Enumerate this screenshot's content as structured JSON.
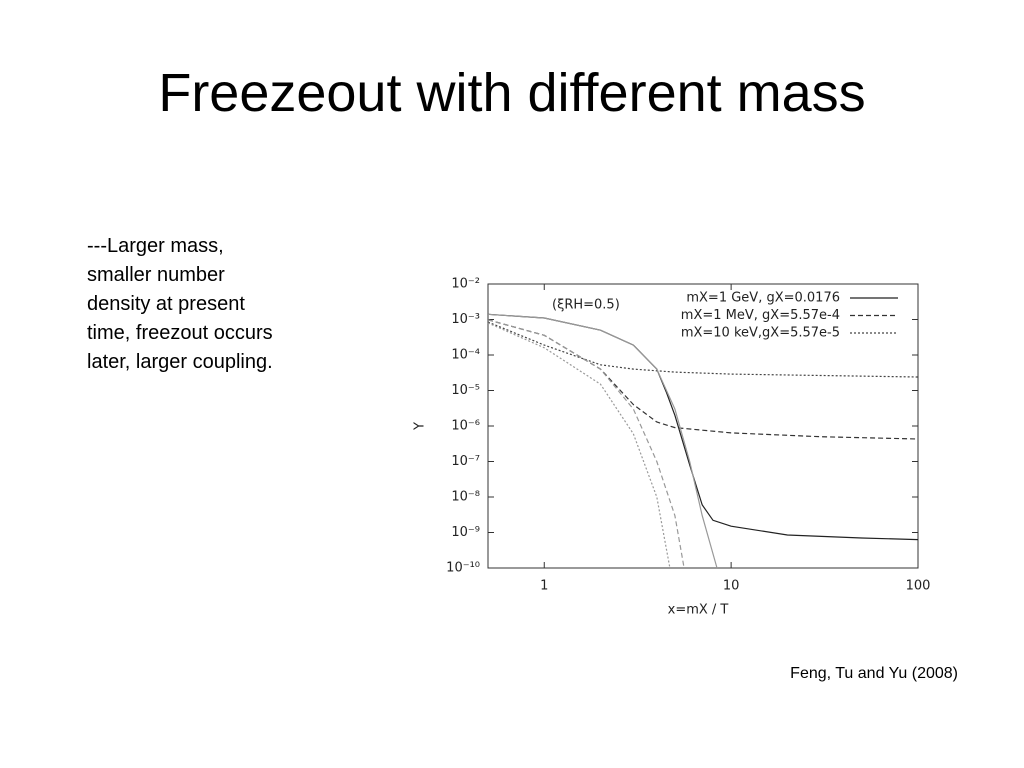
{
  "slide": {
    "title": "Freezeout with different mass",
    "text_lines": [
      "---Larger mass,",
      "smaller number",
      "density at present",
      "time, freezout occurs",
      "later, larger coupling."
    ],
    "citation": "Feng, Tu and Yu (2008)"
  },
  "chart_data": {
    "type": "line",
    "xlabel": "x=mX / T",
    "ylabel": "Y",
    "annotation": "(ξRH=0.5)",
    "xscale": "log",
    "yscale": "log",
    "legend": "upper right",
    "xlim": [
      0.5,
      100
    ],
    "ylim": [
      1e-10,
      0.01
    ],
    "xticks": [
      1,
      10,
      100
    ],
    "yticks": [
      {
        "value": 1e-10,
        "label": "10⁻¹⁰"
      },
      {
        "value": 1e-09,
        "label": "10⁻⁹"
      },
      {
        "value": 1e-08,
        "label": "10⁻⁸"
      },
      {
        "value": 1e-07,
        "label": "10⁻⁷"
      },
      {
        "value": 1e-06,
        "label": "10⁻⁶"
      },
      {
        "value": 1e-05,
        "label": "10⁻⁵"
      },
      {
        "value": 0.0001,
        "label": "10⁻⁴"
      },
      {
        "value": 0.001,
        "label": "10⁻³"
      },
      {
        "value": 0.01,
        "label": "10⁻²"
      }
    ],
    "series": [
      {
        "name": "mX=1 GeV, gX=0.0176",
        "color": "#222222",
        "dash": "solid",
        "x": [
          0.5,
          1,
          2,
          3,
          4,
          4.5,
          5,
          6,
          7,
          8,
          10,
          20,
          50,
          100
        ],
        "values": [
          0.0014,
          0.0011,
          0.0005,
          0.00019,
          4e-05,
          9e-06,
          2e-06,
          8e-08,
          6e-09,
          2.2e-09,
          1.5e-09,
          8.5e-10,
          7e-10,
          6.3e-10
        ]
      },
      {
        "name": "mX=1 MeV, gX=5.57e-4",
        "color": "#333333",
        "dash": "dashed",
        "x": [
          0.5,
          1,
          2,
          3,
          4,
          5,
          10,
          30,
          100
        ],
        "values": [
          0.00098,
          0.00036,
          4e-05,
          4e-06,
          1.3e-06,
          9e-07,
          6.4e-07,
          5e-07,
          4.3e-07
        ]
      },
      {
        "name": "mX=10 keV,gX=5.57e-5",
        "color": "#444444",
        "dash": "dotted",
        "x": [
          0.5,
          1,
          2,
          3,
          5,
          10,
          100
        ],
        "values": [
          0.00085,
          0.00019,
          5.3e-05,
          4e-05,
          3.3e-05,
          2.9e-05,
          2.4e-05
        ]
      },
      {
        "color": "#999999",
        "dash": "solid",
        "x": [
          0.5,
          1,
          2,
          3,
          4,
          5,
          6,
          7,
          8.4
        ],
        "values": [
          0.0014,
          0.0011,
          0.0005,
          0.00019,
          4e-05,
          3e-06,
          1e-07,
          3e-09,
          1e-10
        ]
      },
      {
        "color": "#999999",
        "dash": "dashed",
        "x": [
          0.5,
          1,
          2,
          3,
          4,
          5,
          5.6
        ],
        "values": [
          0.00098,
          0.00036,
          4e-05,
          3e-06,
          1e-07,
          3e-09,
          1e-10
        ]
      },
      {
        "color": "#999999",
        "dash": "dotted",
        "x": [
          0.5,
          1,
          2,
          3,
          4,
          4.7
        ],
        "values": [
          0.0008,
          0.00016,
          1.5e-05,
          6e-07,
          1e-08,
          1e-10
        ]
      }
    ]
  }
}
